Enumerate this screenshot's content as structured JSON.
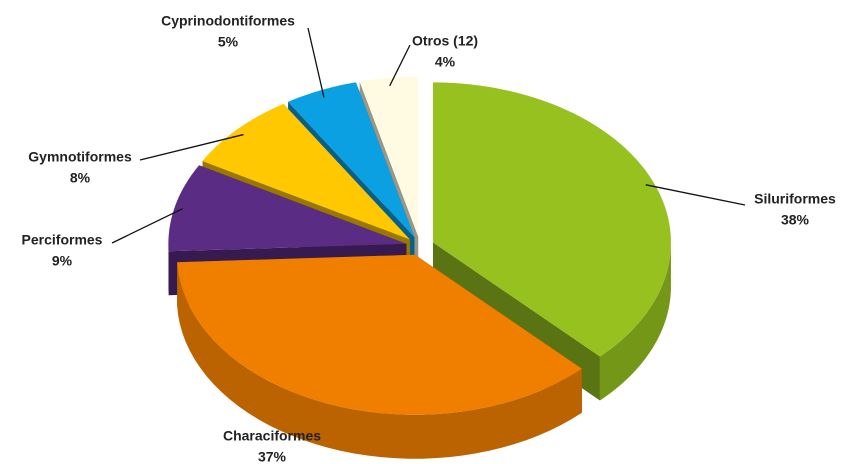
{
  "chart_data": {
    "type": "pie",
    "categories": [
      "Siluriformes",
      "Characiformes",
      "Perciformes",
      "Gymnotiformes",
      "Cyprinodontiformes",
      "Otros (12)"
    ],
    "values": [
      38,
      37,
      9,
      8,
      5,
      4
    ],
    "value_labels": [
      "38%",
      "37%",
      "9%",
      "8%",
      "5%",
      "4%"
    ],
    "colors": [
      "#96c11f",
      "#f07f00",
      "#5b2c83",
      "#ffc800",
      "#0ba0e1",
      "#fffbe3"
    ]
  }
}
